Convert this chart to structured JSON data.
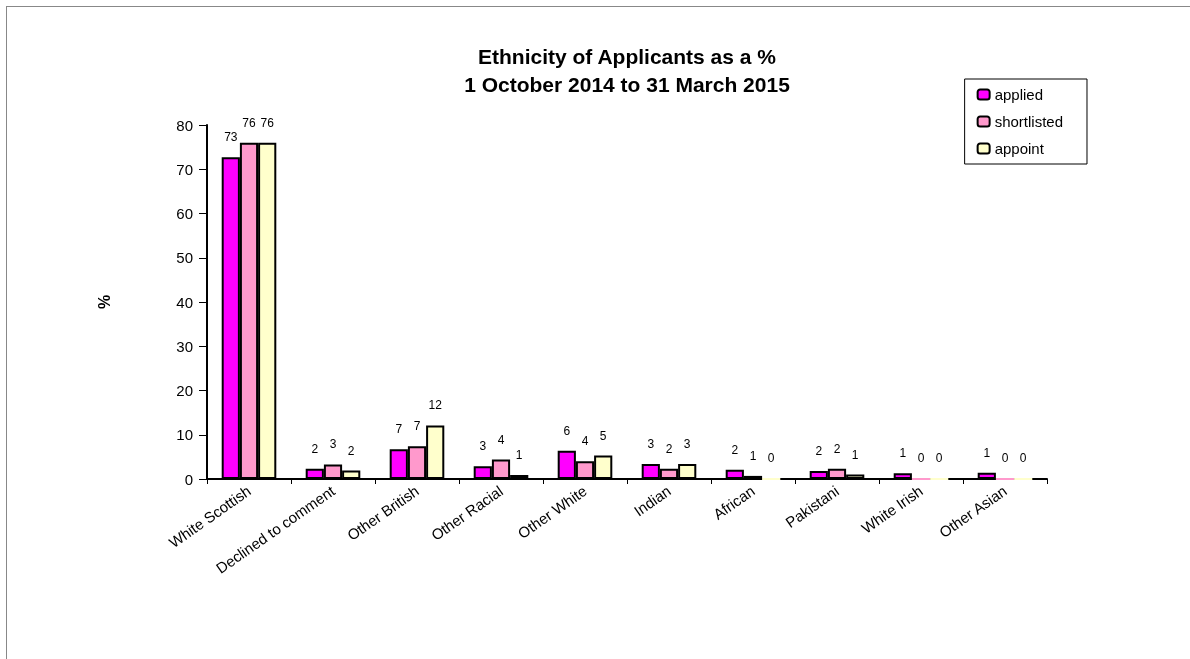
{
  "chart_data": {
    "type": "bar",
    "title": "Ethnicity of Applicants as a %\n1 October 2014 to 31 March 2015",
    "ylabel": "%",
    "categories": [
      "White Scottish",
      "Declined to comment",
      "Other British",
      "Other Racial",
      "Other White",
      "Indian",
      "African",
      "Pakistani",
      "White Irish",
      "Other Asian"
    ],
    "series": [
      {
        "name": "applied",
        "color": "#ff00ff",
        "values": [
          72.7,
          2.3,
          6.7,
          2.9,
          6.4,
          3.4,
          2.1,
          1.8,
          1.3,
          1.4
        ],
        "value_labels": [
          "73",
          "2",
          "7",
          "3",
          "6",
          "3",
          "2",
          "2",
          "1",
          "1"
        ]
      },
      {
        "name": "shortlisted",
        "color": "#ff99cc",
        "values": [
          76.0,
          3.3,
          7.4,
          4.4,
          4.0,
          2.3,
          0.7,
          2.3,
          0,
          0
        ],
        "value_labels": [
          "76",
          "3",
          "7",
          "4",
          "4",
          "2",
          "1",
          "2",
          "0",
          "0"
        ]
      },
      {
        "name": "appoint",
        "color": "#ffffcc",
        "values": [
          76.0,
          1.9,
          12.1,
          0.9,
          5.3,
          3.4,
          0,
          1.0,
          0,
          0
        ],
        "value_labels": [
          "76",
          "2",
          "12",
          "1",
          "5",
          "3",
          "0",
          "1",
          "0",
          "0"
        ]
      }
    ],
    "ylim": [
      0,
      80
    ],
    "yticks": [
      0,
      10,
      20,
      30,
      40,
      50,
      60,
      70,
      80
    ],
    "grid": false,
    "legend": "top right"
  }
}
